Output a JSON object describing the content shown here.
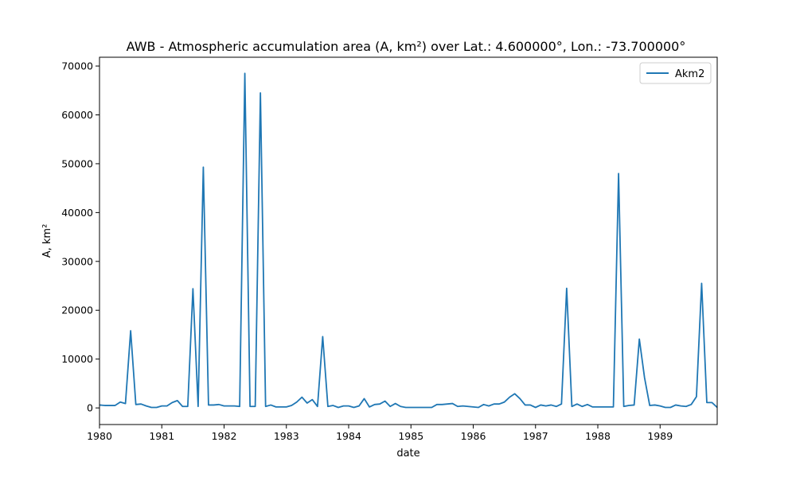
{
  "chart_data": {
    "type": "line",
    "title": "AWB - Atmospheric accumulation area (A, km²) over Lat.: 4.600000°, Lon.: -73.700000°",
    "xlabel": "date",
    "ylabel": "A, km²",
    "xlim": [
      "1980-01",
      "1989-12"
    ],
    "ylim": [
      -3400,
      71800
    ],
    "x_ticks": [
      "1980",
      "1981",
      "1982",
      "1983",
      "1984",
      "1985",
      "1986",
      "1987",
      "1988",
      "1989"
    ],
    "y_ticks": [
      0,
      10000,
      20000,
      30000,
      40000,
      50000,
      60000,
      70000
    ],
    "grid": false,
    "legend_position": "upper right",
    "series": [
      {
        "name": "Akm2",
        "color": "#1f77b4",
        "x": [
          "1980-01",
          "1980-02",
          "1980-03",
          "1980-04",
          "1980-05",
          "1980-06",
          "1980-07",
          "1980-08",
          "1980-09",
          "1980-10",
          "1980-11",
          "1980-12",
          "1981-01",
          "1981-02",
          "1981-03",
          "1981-04",
          "1981-05",
          "1981-06",
          "1981-07",
          "1981-08",
          "1981-09",
          "1981-10",
          "1981-11",
          "1981-12",
          "1982-01",
          "1982-02",
          "1982-03",
          "1982-04",
          "1982-05",
          "1982-06",
          "1982-07",
          "1982-08",
          "1982-09",
          "1982-10",
          "1982-11",
          "1982-12",
          "1983-01",
          "1983-02",
          "1983-03",
          "1983-04",
          "1983-05",
          "1983-06",
          "1983-07",
          "1983-08",
          "1983-09",
          "1983-10",
          "1983-11",
          "1983-12",
          "1984-01",
          "1984-02",
          "1984-03",
          "1984-04",
          "1984-05",
          "1984-06",
          "1984-07",
          "1984-08",
          "1984-09",
          "1984-10",
          "1984-11",
          "1984-12",
          "1985-01",
          "1985-02",
          "1985-03",
          "1985-04",
          "1985-05",
          "1985-06",
          "1985-07",
          "1985-08",
          "1985-09",
          "1985-10",
          "1985-11",
          "1985-12",
          "1986-01",
          "1986-02",
          "1986-03",
          "1986-04",
          "1986-05",
          "1986-06",
          "1986-07",
          "1986-08",
          "1986-09",
          "1986-10",
          "1986-11",
          "1986-12",
          "1987-01",
          "1987-02",
          "1987-03",
          "1987-04",
          "1987-05",
          "1987-06",
          "1987-07",
          "1987-08",
          "1987-09",
          "1987-10",
          "1987-11",
          "1987-12",
          "1988-01",
          "1988-02",
          "1988-03",
          "1988-04",
          "1988-05",
          "1988-06",
          "1988-07",
          "1988-08",
          "1988-09",
          "1988-10",
          "1988-11",
          "1988-12",
          "1989-01",
          "1989-02",
          "1989-03",
          "1989-04",
          "1989-05",
          "1989-06",
          "1989-07",
          "1989-08",
          "1989-09",
          "1989-10",
          "1989-11",
          "1989-12"
        ],
        "values": [
          600,
          500,
          500,
          500,
          1200,
          900,
          15800,
          700,
          800,
          400,
          100,
          100,
          400,
          400,
          1100,
          1500,
          300,
          300,
          24400,
          300,
          49300,
          600,
          600,
          700,
          400,
          400,
          400,
          300,
          68500,
          300,
          300,
          64500,
          300,
          600,
          200,
          200,
          200,
          500,
          1200,
          2200,
          1000,
          1700,
          300,
          14600,
          300,
          500,
          100,
          400,
          400,
          100,
          400,
          1900,
          200,
          700,
          800,
          1400,
          300,
          900,
          300,
          100,
          100,
          100,
          100,
          100,
          100,
          700,
          700,
          800,
          900,
          300,
          400,
          300,
          200,
          100,
          700,
          400,
          800,
          800,
          1200,
          2200,
          2900,
          1900,
          600,
          600,
          100,
          600,
          400,
          600,
          300,
          800,
          24500,
          300,
          800,
          300,
          700,
          200,
          200,
          200,
          200,
          200,
          48000,
          300,
          500,
          600,
          14100,
          6200,
          500,
          600,
          400,
          100,
          100,
          600,
          400,
          300,
          700,
          2300,
          25500,
          1100,
          1100,
          100
        ]
      }
    ]
  }
}
